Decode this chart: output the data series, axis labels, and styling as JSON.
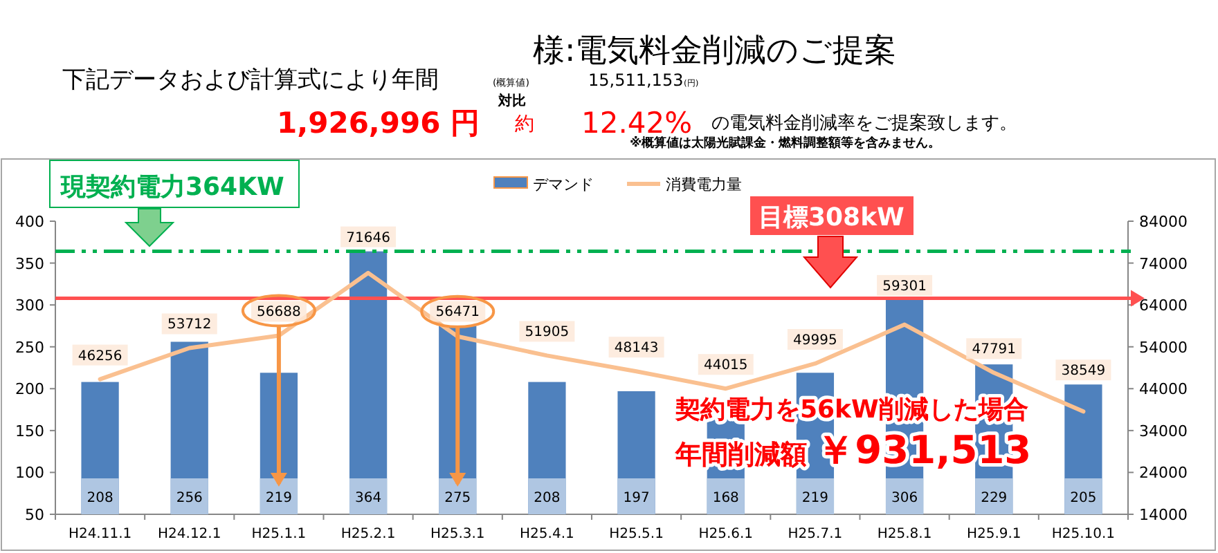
{
  "chart_data": {
    "type": "bar",
    "title": "様:電気料金削減のご提案",
    "categories": [
      "H24.11.1",
      "H24.12.1",
      "H25.1.1",
      "H25.2.1",
      "H25.3.1",
      "H25.4.1",
      "H25.5.1",
      "H25.6.1",
      "H25.7.1",
      "H25.8.1",
      "H25.9.1",
      "H25.10.1"
    ],
    "series": [
      {
        "name": "デマンド",
        "type": "bar",
        "color": "#4f81bd",
        "values": [
          208,
          256,
          219,
          364,
          275,
          208,
          197,
          168,
          219,
          306,
          229,
          205
        ]
      },
      {
        "name": "消費電力量",
        "type": "line",
        "axis": "y2",
        "color": "#fac090",
        "values": [
          46256,
          53712,
          56688,
          71646,
          56471,
          51905,
          48143,
          44015,
          49995,
          59301,
          47791,
          38549
        ]
      }
    ],
    "data_labels": true,
    "ylim": [
      50,
      400
    ],
    "yticks": [
      50,
      100,
      150,
      200,
      250,
      300,
      350,
      400
    ],
    "y2lim": [
      14000,
      84000
    ],
    "y2ticks": [
      14000,
      24000,
      34000,
      44000,
      54000,
      64000,
      74000,
      84000
    ],
    "legend": "top",
    "ref_lines": [
      {
        "axis": "y",
        "value": 364,
        "label": "現契約電力364KW",
        "color": "#00b050",
        "line_style": "dashdot"
      },
      {
        "axis": "y",
        "value": 308,
        "label": "目標308kW",
        "color": "#ff5050",
        "line_style": "solid"
      }
    ],
    "annotations": [
      "下記データおよび計算式により年間",
      "1,926,996 円",
      "(概算値)",
      "15,511,153",
      "(円)",
      "対比",
      "約",
      "12.42%",
      "の電気料金削減率をご提案致します。",
      "※概算値は太陽光賦課金・燃料調整額等を含みません。",
      "契約電力を56kW削減した場合",
      "年間削減額 ￥931,513"
    ]
  }
}
